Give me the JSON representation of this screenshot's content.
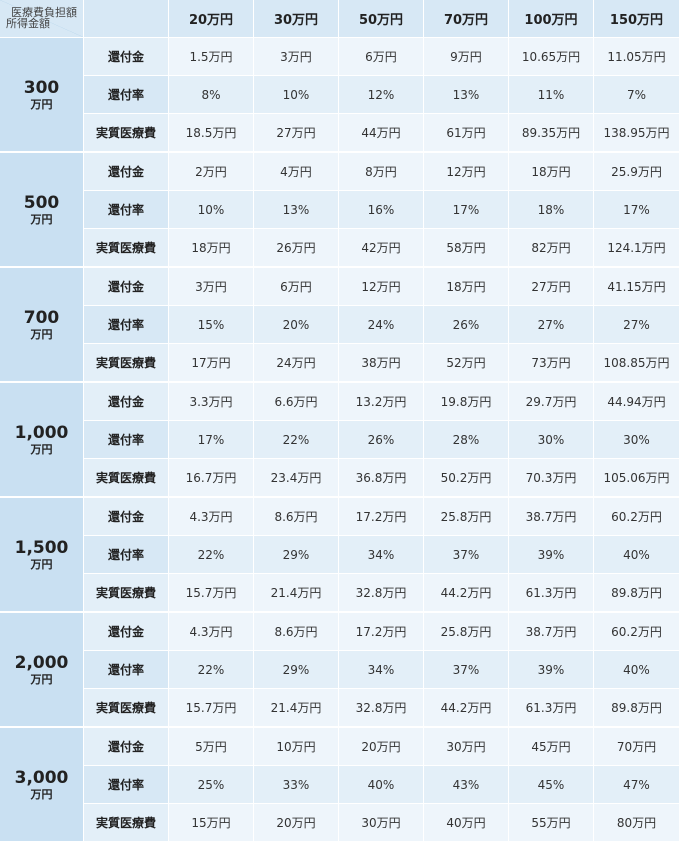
{
  "header": {
    "corner_top": "医療費負担額",
    "corner_bottom": "所得金額",
    "amounts": [
      "20万円",
      "30万円",
      "50万円",
      "70万円",
      "100万円",
      "150万円"
    ]
  },
  "row_labels": [
    "還付金",
    "還付率",
    "実質医療費"
  ],
  "groups": [
    {
      "income": "300",
      "unit": "万円",
      "rows": [
        [
          "1.5万円",
          "3万円",
          "6万円",
          "9万円",
          "10.65万円",
          "11.05万円"
        ],
        [
          "8%",
          "10%",
          "12%",
          "13%",
          "11%",
          "7%"
        ],
        [
          "18.5万円",
          "27万円",
          "44万円",
          "61万円",
          "89.35万円",
          "138.95万円"
        ]
      ]
    },
    {
      "income": "500",
      "unit": "万円",
      "rows": [
        [
          "2万円",
          "4万円",
          "8万円",
          "12万円",
          "18万円",
          "25.9万円"
        ],
        [
          "10%",
          "13%",
          "16%",
          "17%",
          "18%",
          "17%"
        ],
        [
          "18万円",
          "26万円",
          "42万円",
          "58万円",
          "82万円",
          "124.1万円"
        ]
      ]
    },
    {
      "income": "700",
      "unit": "万円",
      "rows": [
        [
          "3万円",
          "6万円",
          "12万円",
          "18万円",
          "27万円",
          "41.15万円"
        ],
        [
          "15%",
          "20%",
          "24%",
          "26%",
          "27%",
          "27%"
        ],
        [
          "17万円",
          "24万円",
          "38万円",
          "52万円",
          "73万円",
          "108.85万円"
        ]
      ]
    },
    {
      "income": "1,000",
      "unit": "万円",
      "rows": [
        [
          "3.3万円",
          "6.6万円",
          "13.2万円",
          "19.8万円",
          "29.7万円",
          "44.94万円"
        ],
        [
          "17%",
          "22%",
          "26%",
          "28%",
          "30%",
          "30%"
        ],
        [
          "16.7万円",
          "23.4万円",
          "36.8万円",
          "50.2万円",
          "70.3万円",
          "105.06万円"
        ]
      ]
    },
    {
      "income": "1,500",
      "unit": "万円",
      "rows": [
        [
          "4.3万円",
          "8.6万円",
          "17.2万円",
          "25.8万円",
          "38.7万円",
          "60.2万円"
        ],
        [
          "22%",
          "29%",
          "34%",
          "37%",
          "39%",
          "40%"
        ],
        [
          "15.7万円",
          "21.4万円",
          "32.8万円",
          "44.2万円",
          "61.3万円",
          "89.8万円"
        ]
      ]
    },
    {
      "income": "2,000",
      "unit": "万円",
      "rows": [
        [
          "4.3万円",
          "8.6万円",
          "17.2万円",
          "25.8万円",
          "38.7万円",
          "60.2万円"
        ],
        [
          "22%",
          "29%",
          "34%",
          "37%",
          "39%",
          "40%"
        ],
        [
          "15.7万円",
          "21.4万円",
          "32.8万円",
          "44.2万円",
          "61.3万円",
          "89.8万円"
        ]
      ]
    },
    {
      "income": "3,000",
      "unit": "万円",
      "rows": [
        [
          "5万円",
          "10万円",
          "20万円",
          "30万円",
          "45万円",
          "70万円"
        ],
        [
          "25%",
          "33%",
          "40%",
          "43%",
          "45%",
          "47%"
        ],
        [
          "15万円",
          "20万円",
          "30万円",
          "40万円",
          "55万円",
          "80万円"
        ]
      ]
    }
  ]
}
